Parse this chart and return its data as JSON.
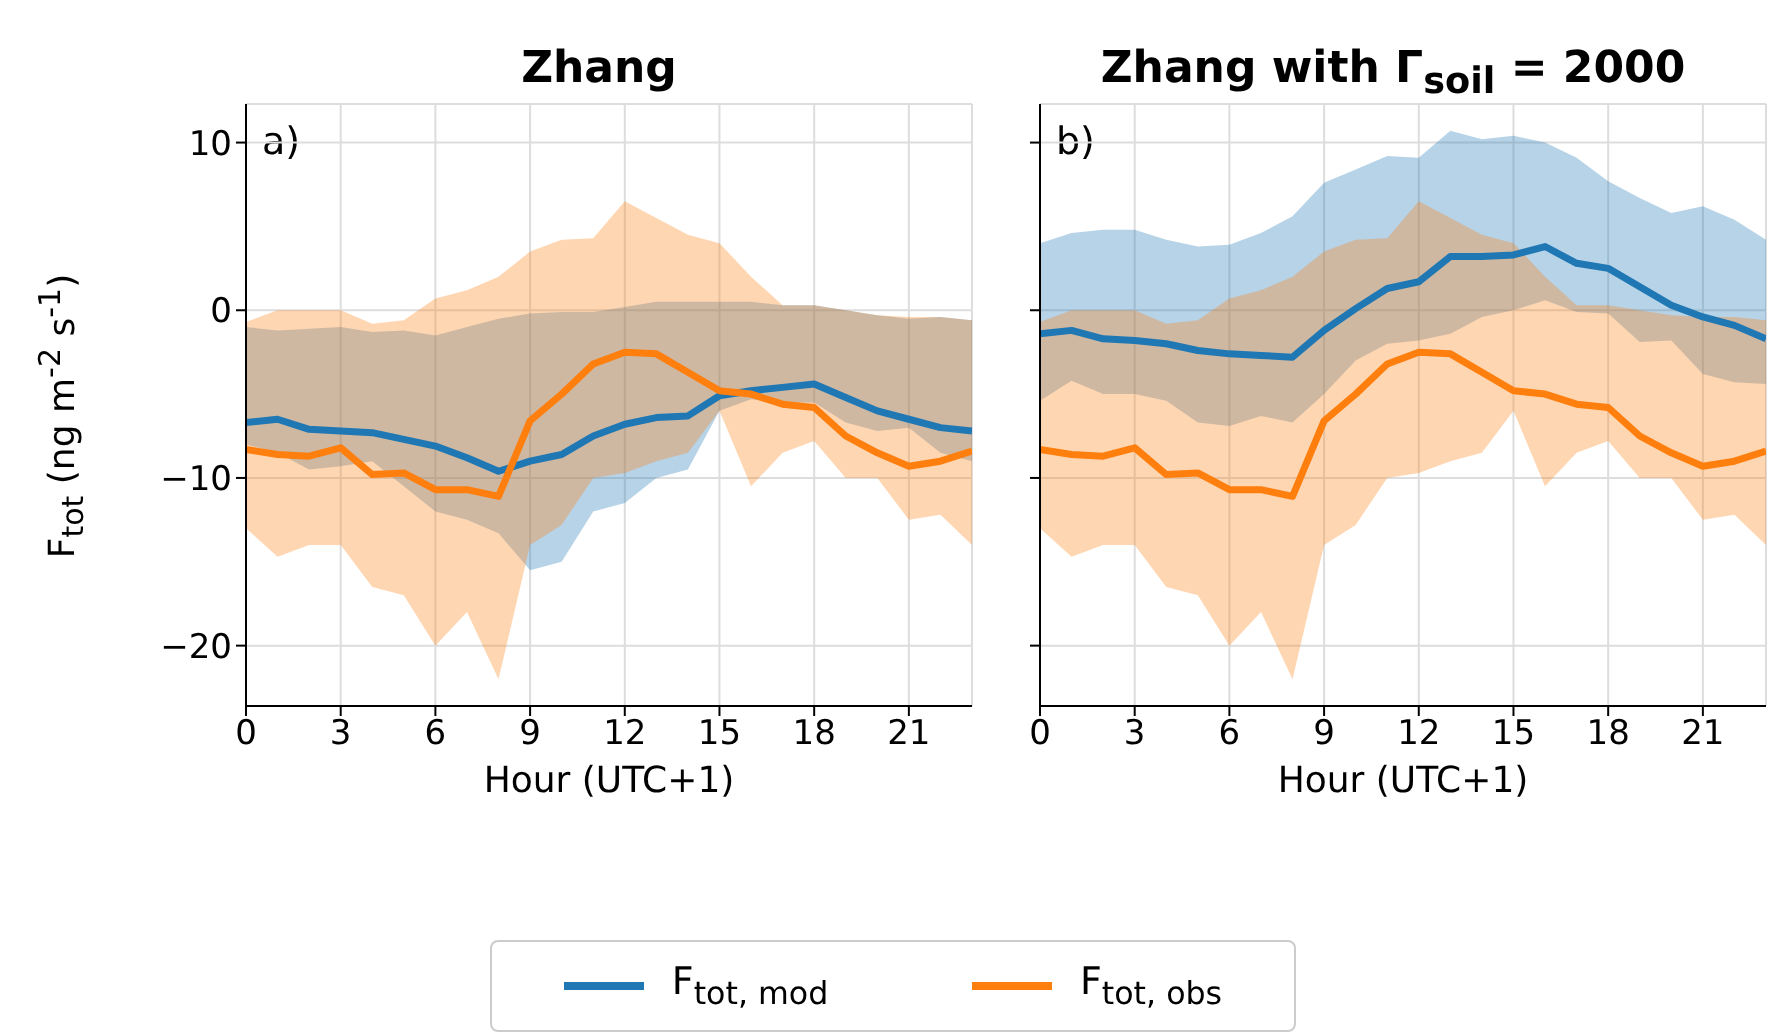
{
  "chart_data": [
    {
      "type": "line",
      "title": "Zhang",
      "xlabel": "Hour (UTC+1)",
      "ylabel": "F$_{tot}$ (ng m$^{-2}$ s$^{-1}$)",
      "annotations": [
        "a)"
      ],
      "x": [
        0,
        1,
        2,
        3,
        4,
        5,
        6,
        7,
        8,
        9,
        10,
        11,
        12,
        13,
        14,
        15,
        16,
        17,
        18,
        19,
        20,
        21,
        22,
        23
      ],
      "series": [
        {
          "name": "F$_{tot, mod}$",
          "color": "#1f77b4",
          "values": [
            -6.7,
            -6.5,
            -7.1,
            -7.2,
            -7.3,
            -7.7,
            -8.1,
            -8.8,
            -9.6,
            -9.0,
            -8.6,
            -7.5,
            -6.8,
            -6.4,
            -6.3,
            -5.1,
            -4.8,
            -4.6,
            -4.4,
            -5.2,
            -6.0,
            -6.5,
            -7.0,
            -7.2
          ],
          "lower": [
            -8,
            -8.5,
            -9.5,
            -9.3,
            -9,
            -10.5,
            -12,
            -12.5,
            -13.3,
            -15.5,
            -15,
            -12,
            -11.5,
            -10,
            -9.5,
            -6,
            -5.3,
            -5.5,
            -5.5,
            -6.7,
            -7.2,
            -7,
            -8.5,
            -9
          ],
          "upper": [
            -1,
            -1.2,
            -1.1,
            -1.0,
            -1.3,
            -1.2,
            -1.5,
            -1.0,
            -0.5,
            -0.2,
            -0.1,
            -0.1,
            0.2,
            0.5,
            0.5,
            0.5,
            0.5,
            0.3,
            0.3,
            0,
            -0.3,
            -0.5,
            -0.4,
            -0.6
          ]
        },
        {
          "name": "F$_{tot, obs}$",
          "color": "#ff7f0e",
          "values": [
            -8.3,
            -8.6,
            -8.7,
            -8.2,
            -9.8,
            -9.7,
            -10.7,
            -10.7,
            -11.1,
            -6.6,
            -5.0,
            -3.2,
            -2.5,
            -2.6,
            -3.7,
            -4.8,
            -5.0,
            -5.6,
            -5.8,
            -7.5,
            -8.5,
            -9.3,
            -9.0,
            -8.4
          ],
          "lower": [
            -13,
            -14.7,
            -14,
            -14,
            -16.5,
            -17,
            -20,
            -18,
            -22,
            -14,
            -12.8,
            -10,
            -9.7,
            -9,
            -8.5,
            -6,
            -10.5,
            -8.5,
            -7.8,
            -10,
            -10,
            -12.5,
            -12.2,
            -14
          ],
          "upper": [
            -0.7,
            0,
            0,
            0,
            -0.8,
            -0.6,
            0.7,
            1.2,
            2,
            3.5,
            4.2,
            4.3,
            6.5,
            5.5,
            4.5,
            4,
            2,
            0.3,
            0.3,
            0,
            -0.3,
            -0.4,
            -0.4,
            -0.6
          ]
        }
      ],
      "xlim": [
        0,
        23
      ],
      "xticks": [
        0,
        3,
        6,
        9,
        12,
        15,
        18,
        21
      ],
      "ylim": [
        -23.6,
        12.3
      ],
      "yticks": [
        -20,
        -10,
        0,
        10
      ],
      "grid": true,
      "legend": "bottom",
      "line_style": "solid",
      "marker": "none"
    },
    {
      "type": "line",
      "title": "Zhang with Γ$_{soil}$ = 2000",
      "xlabel": "Hour (UTC+1)",
      "annotations": [
        "b)"
      ],
      "x": [
        0,
        1,
        2,
        3,
        4,
        5,
        6,
        7,
        8,
        9,
        10,
        11,
        12,
        13,
        14,
        15,
        16,
        17,
        18,
        19,
        20,
        21,
        22,
        23
      ],
      "series": [
        {
          "color": "#1f77b4",
          "values": [
            -1.4,
            -1.2,
            -1.7,
            -1.8,
            -2.0,
            -2.4,
            -2.6,
            -2.7,
            -2.8,
            -1.2,
            0.1,
            1.3,
            1.7,
            3.2,
            3.2,
            3.3,
            3.8,
            2.8,
            2.5,
            1.4,
            0.3,
            -0.4,
            -0.9,
            -1.7
          ],
          "lower": [
            -5.4,
            -4.2,
            -5.0,
            -5.0,
            -5.4,
            -6.7,
            -6.9,
            -6.3,
            -6.7,
            -5.0,
            -3.0,
            -2.0,
            -1.8,
            -1.4,
            -0.4,
            0,
            0.6,
            -0.1,
            -0.2,
            -1.9,
            -1.8,
            -3.8,
            -4.3,
            -4.4
          ],
          "upper": [
            4.0,
            4.6,
            4.8,
            4.8,
            4.2,
            3.8,
            3.9,
            4.6,
            5.6,
            7.6,
            8.4,
            9.2,
            9.1,
            10.7,
            10.2,
            10.4,
            10,
            9.1,
            7.7,
            6.7,
            5.8,
            6.2,
            5.4,
            4.2
          ]
        },
        {
          "color": "#ff7f0e",
          "values": [
            -8.3,
            -8.6,
            -8.7,
            -8.2,
            -9.8,
            -9.7,
            -10.7,
            -10.7,
            -11.1,
            -6.6,
            -5.0,
            -3.2,
            -2.5,
            -2.6,
            -3.7,
            -4.8,
            -5.0,
            -5.6,
            -5.8,
            -7.5,
            -8.5,
            -9.3,
            -9.0,
            -8.4
          ],
          "lower": [
            -13,
            -14.7,
            -14,
            -14,
            -16.5,
            -17,
            -20,
            -18,
            -22,
            -14,
            -12.8,
            -10,
            -9.7,
            -9,
            -8.5,
            -6,
            -10.5,
            -8.5,
            -7.8,
            -10,
            -10,
            -12.5,
            -12.2,
            -14
          ],
          "upper": [
            -0.7,
            0,
            0,
            0,
            -0.8,
            -0.6,
            0.7,
            1.2,
            2,
            3.5,
            4.2,
            4.3,
            6.5,
            5.5,
            4.5,
            4,
            2,
            0.3,
            0.3,
            0,
            -0.3,
            -0.4,
            -0.4,
            -0.6
          ]
        }
      ],
      "xlim": [
        0,
        23
      ],
      "xticks": [
        0,
        3,
        6,
        9,
        12,
        15,
        18,
        21
      ],
      "ylim": [
        -23.6,
        12.3
      ],
      "yticks": [
        -20,
        -10,
        0,
        10
      ],
      "tick_labels": "x",
      "grid": true,
      "line_style": "solid",
      "marker": "none"
    }
  ]
}
